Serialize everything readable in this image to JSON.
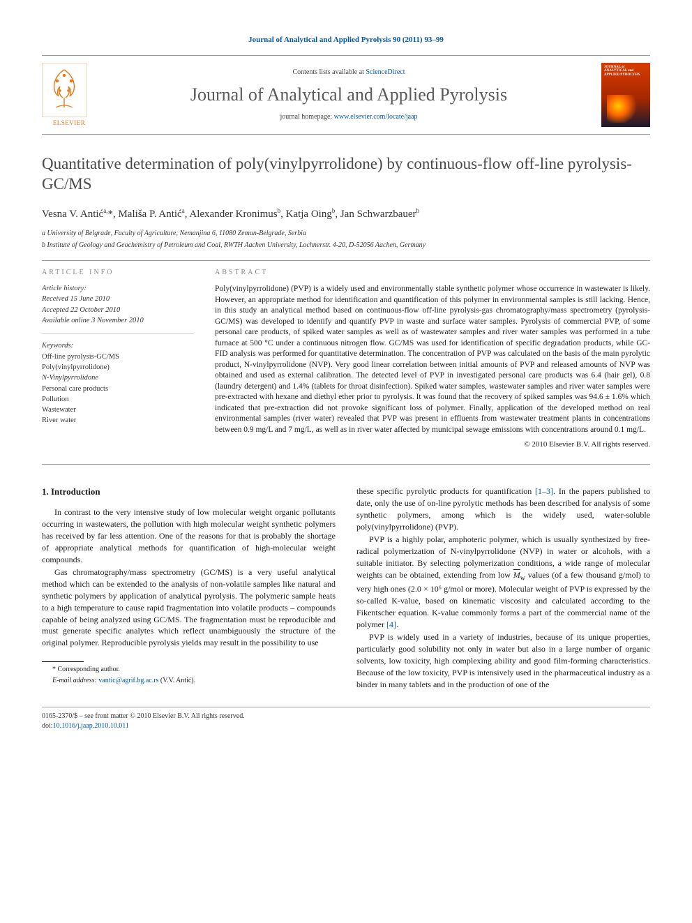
{
  "citation": "Journal of Analytical and Applied Pyrolysis 90 (2011) 93–99",
  "masthead": {
    "contents_prefix": "Contents lists available at ",
    "contents_link": "ScienceDirect",
    "journal_name": "Journal of Analytical and Applied Pyrolysis",
    "homepage_prefix": "journal homepage: ",
    "homepage_url": "www.elsevier.com/locate/jaap",
    "publisher": "ELSEVIER",
    "cover_text": "JOURNAL of ANALYTICAL and APPLIED PYROLYSIS"
  },
  "article": {
    "title": "Quantitative determination of poly(vinylpyrrolidone) by continuous-flow off-line pyrolysis-GC/MS",
    "authors_html": "Vesna V. Antić<sup>a,</sup>*, Mališa P. Antić<sup>a</sup>, Alexander Kronimus<sup>b</sup>, Katja Oing<sup>b</sup>, Jan Schwarzbauer<sup>b</sup>",
    "affiliations": [
      "a University of Belgrade, Faculty of Agriculture, Nemanjina 6, 11080 Zemun-Belgrade, Serbia",
      "b Institute of Geology and Geochemistry of Petroleum and Coal, RWTH Aachen University, Lochnerstr. 4-20, D-52056 Aachen, Germany"
    ]
  },
  "info": {
    "heading": "article info",
    "history_label": "Article history:",
    "received": "Received 15 June 2010",
    "accepted": "Accepted 22 October 2010",
    "online": "Available online 3 November 2010",
    "keywords_label": "Keywords:",
    "keywords": [
      "Off-line pyrolysis-GC/MS",
      "Poly(vinylpyrrolidone)",
      "N-Vinylpyrrolidone",
      "Personal care products",
      "Pollution",
      "Wastewater",
      "River water"
    ]
  },
  "abstract": {
    "heading": "abstract",
    "text": "Poly(vinylpyrrolidone) (PVP) is a widely used and environmentally stable synthetic polymer whose occurrence in wastewater is likely. However, an appropriate method for identification and quantification of this polymer in environmental samples is still lacking. Hence, in this study an analytical method based on continuous-flow off-line pyrolysis-gas chromatography/mass spectrometry (pyrolysis-GC/MS) was developed to identify and quantify PVP in waste and surface water samples. Pyrolysis of commercial PVP, of some personal care products, of spiked water samples as well as of wastewater samples and river water samples was performed in a tube furnace at 500 °C under a continuous nitrogen flow. GC/MS was used for identification of specific degradation products, while GC-FID analysis was performed for quantitative determination. The concentration of PVP was calculated on the basis of the main pyrolytic product, N-vinylpyrrolidone (NVP). Very good linear correlation between initial amounts of PVP and released amounts of NVP was obtained and used as external calibration. The detected level of PVP in investigated personal care products was 6.4 (hair gel), 0.8 (laundry detergent) and 1.4% (tablets for throat disinfection). Spiked water samples, wastewater samples and river water samples were pre-extracted with hexane and diethyl ether prior to pyrolysis. It was found that the recovery of spiked samples was 94.6 ± 1.6% which indicated that pre-extraction did not provoke significant loss of polymer. Finally, application of the developed method on real environmental samples (river water) revealed that PVP was present in effluents from wastewater treatment plants in concentrations between 0.9 mg/L and 7 mg/L, as well as in river water affected by municipal sewage emissions with concentrations around 0.1 mg/L.",
    "copyright": "© 2010 Elsevier B.V. All rights reserved."
  },
  "body": {
    "section_heading": "1. Introduction",
    "p1": "In contrast to the very intensive study of low molecular weight organic pollutants occurring in wastewaters, the pollution with high molecular weight synthetic polymers has received by far less attention. One of the reasons for that is probably the shortage of appropriate analytical methods for quantification of high-molecular weight compounds.",
    "p2": "Gas chromatography/mass spectrometry (GC/MS) is a very useful analytical method which can be extended to the analysis of non-volatile samples like natural and synthetic polymers by application of analytical pyrolysis. The polymeric sample heats to a high temperature to cause rapid fragmentation into volatile products – compounds capable of being analyzed using GC/MS. The fragmentation must be reproducible and must generate specific analytes which reflect unambiguously the structure of the original polymer. Reproducible pyrolysis yields may result in the possibility to use",
    "p3_pre": "these specific pyrolytic products for quantification ",
    "p3_link": "[1–3]",
    "p3_post": ". In the papers published to date, only the use of on-line pyrolytic methods has been described for analysis of some synthetic polymers, among which is the widely used, water-soluble poly(vinylpyrrolidone) (PVP).",
    "p4_pre": "PVP is a highly polar, amphoteric polymer, which is usually synthesized by free-radical polymerization of N-vinylpyrrolidone (NVP) in water or alcohols, with a suitable initiator. By selecting polymerization conditions, a wide range of molecular weights can be obtained, extending from low ",
    "p4_mw": "M̄w",
    "p4_mid": " values (of a few thousand g/mol) to very high ones (2.0 × 10⁶ g/mol or more). Molecular weight of PVP is expressed by the so-called K-value, based on kinematic viscosity and calculated according to the Fikentscher equation. K-value commonly forms a part of the commercial name of the polymer ",
    "p4_link": "[4]",
    "p4_post": ".",
    "p5": "PVP is widely used in a variety of industries, because of its unique properties, particularly good solubility not only in water but also in a large number of organic solvents, low toxicity, high complexing ability and good film-forming characteristics. Because of the low toxicity, PVP is intensively used in the pharmaceutical industry as a binder in many tablets and in the production of one of the"
  },
  "footnote": {
    "corr": "* Corresponding author.",
    "email_label": "E-mail address: ",
    "email": "vantic@agrif.bg.ac.rs",
    "email_post": " (V.V. Antić)."
  },
  "footer": {
    "line1": "0165-2370/$ – see front matter © 2010 Elsevier B.V. All rights reserved.",
    "doi_label": "doi:",
    "doi": "10.1016/j.jaap.2010.10.011"
  },
  "colors": {
    "link": "#0056b3",
    "orange": "#e67817",
    "grey": "#5a5a5a"
  }
}
